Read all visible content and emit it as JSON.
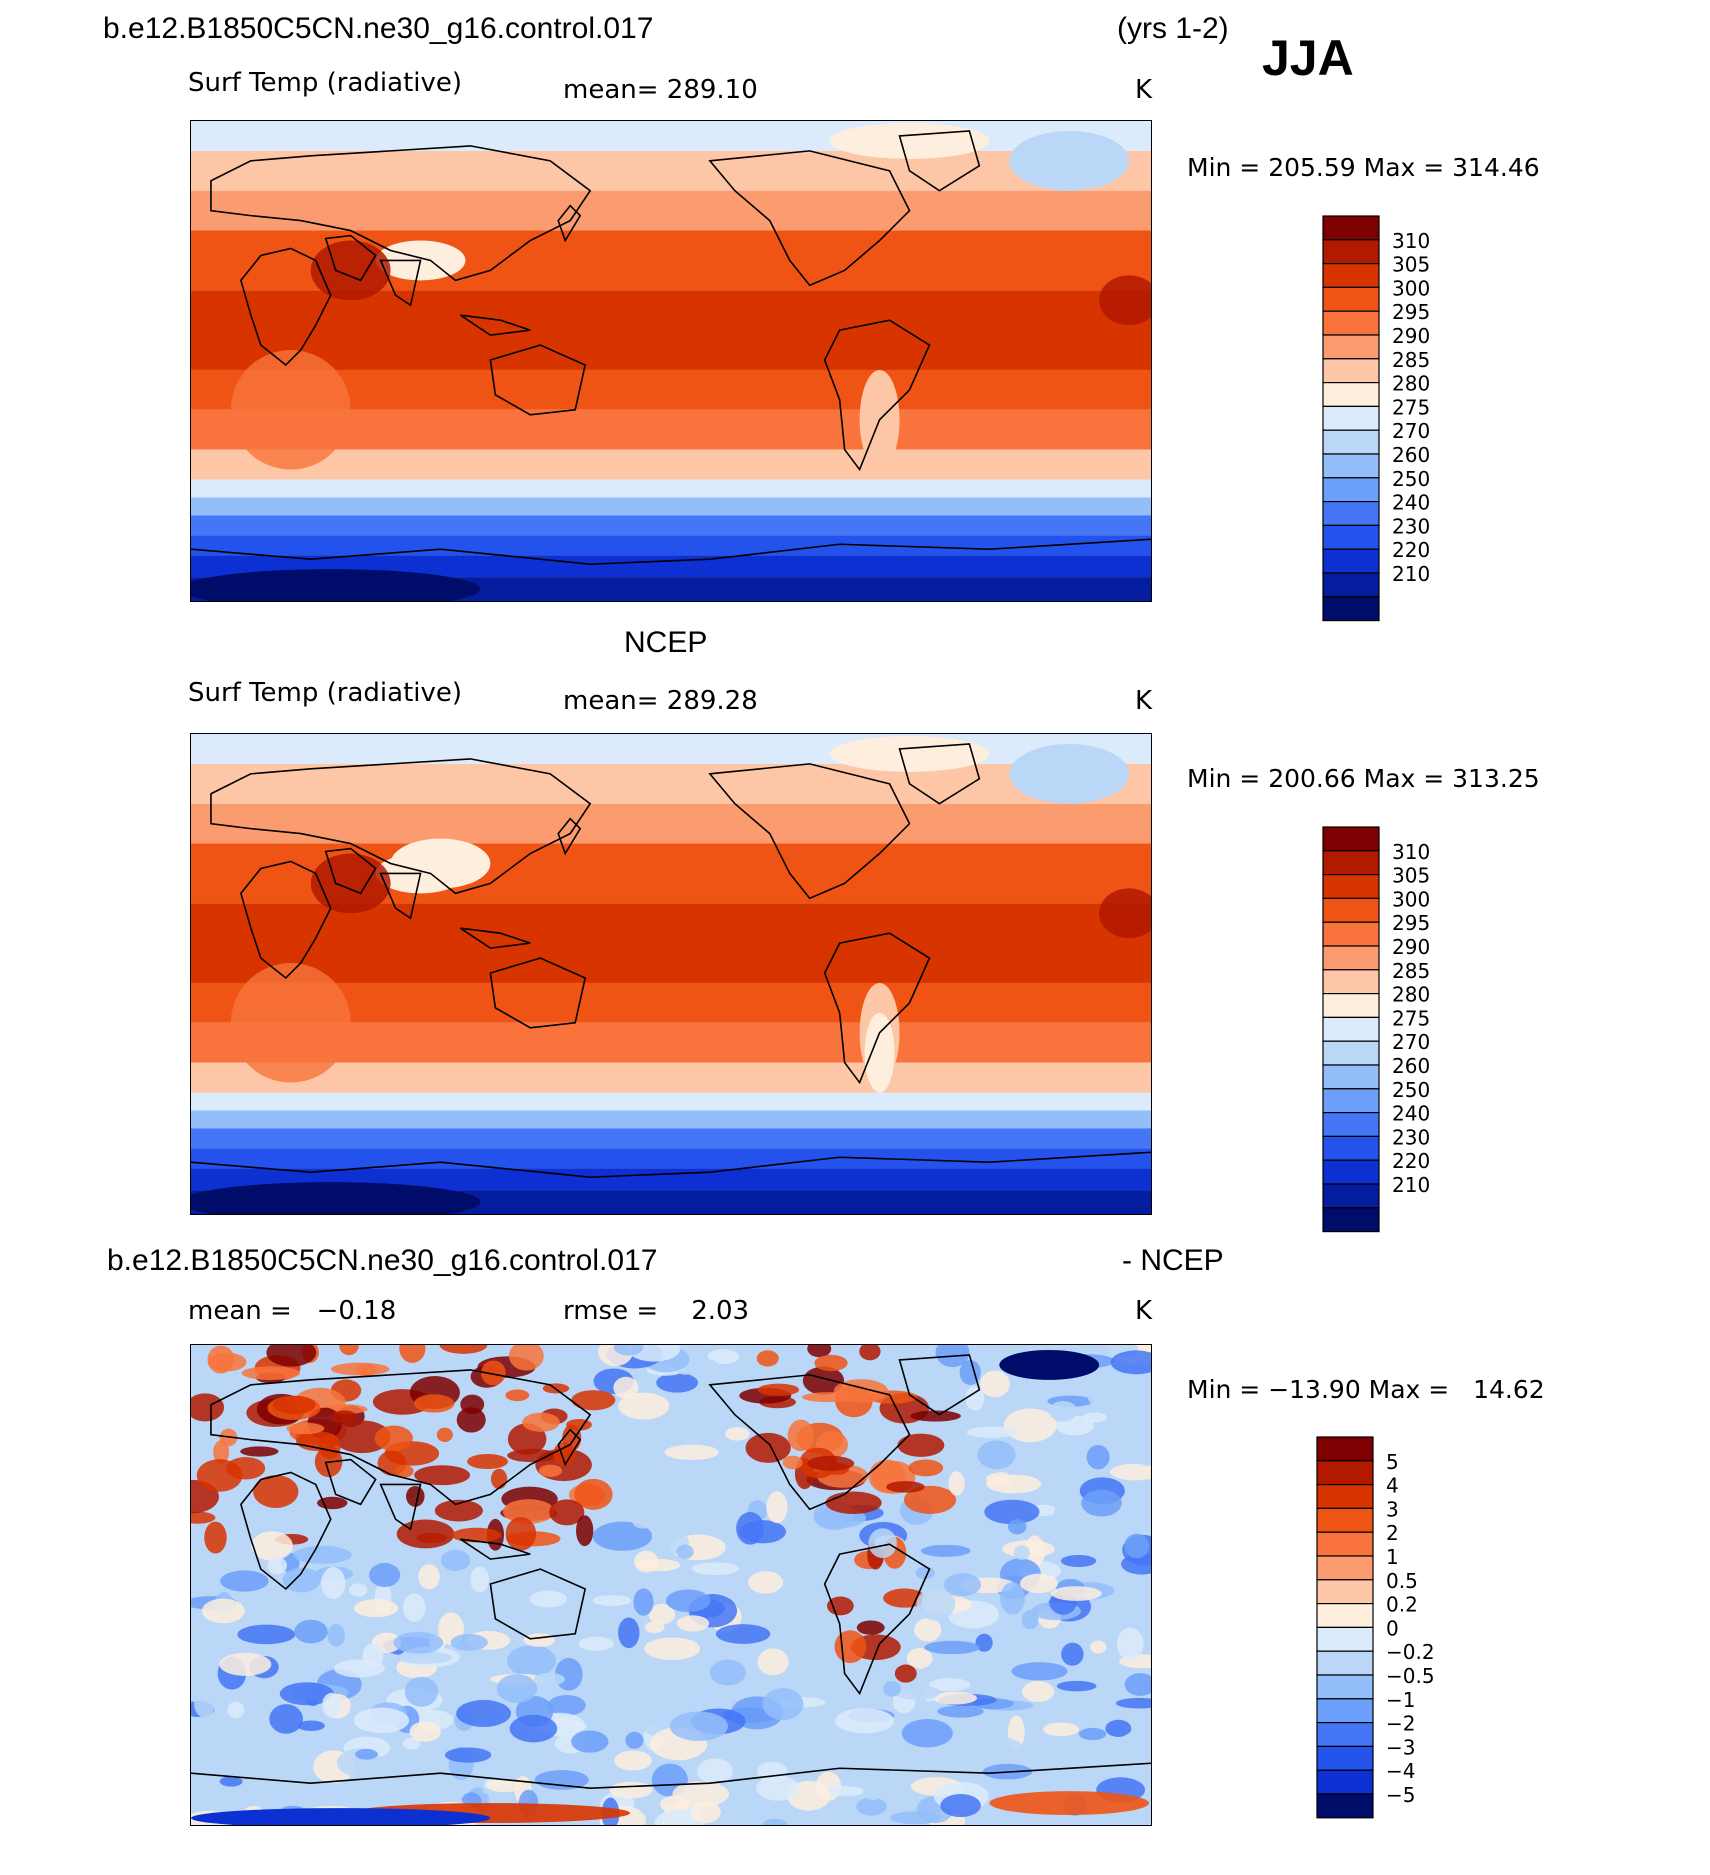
{
  "header": {
    "case_title": "b.e12.B1850C5CN.ne30_g16.control.017",
    "years": "(yrs 1-2)",
    "season": "JJA"
  },
  "panels": [
    {
      "name": "model",
      "title": "",
      "variable": "Surf Temp (radiative)",
      "mean": "mean= 289.10",
      "units": "K",
      "minmax": "Min = 205.59 Max = 314.46"
    },
    {
      "name": "obs",
      "title": "NCEP",
      "variable": "Surf Temp (radiative)",
      "mean": "mean= 289.28",
      "units": "K",
      "minmax": "Min = 200.66 Max = 313.25"
    },
    {
      "name": "diff",
      "title": "b.e12.B1850C5CN.ne30_g16.control.017",
      "title_right": "- NCEP",
      "variable": "mean =   −0.18",
      "mean": "rmse =    2.03",
      "units": "K",
      "minmax": "Min = −13.90 Max =   14.62"
    }
  ],
  "colorbars": {
    "abs_labels": [
      "310",
      "305",
      "300",
      "295",
      "290",
      "285",
      "280",
      "275",
      "270",
      "260",
      "250",
      "240",
      "230",
      "220",
      "210"
    ],
    "abs_colors": [
      "#7e0000",
      "#b21900",
      "#d83400",
      "#ef5414",
      "#f8743c",
      "#fb9b70",
      "#fdc6a6",
      "#fdeede",
      "#dcebfb",
      "#bad7f7",
      "#94befa",
      "#6c9ff9",
      "#4576f5",
      "#2352ec",
      "#0c30d2",
      "#041c9e",
      "#000c6a"
    ],
    "diff_labels": [
      "5",
      "4",
      "3",
      "2",
      "1",
      "0.5",
      "0.2",
      "0",
      "−0.2",
      "−0.5",
      "−1",
      "−2",
      "−3",
      "−4",
      "−5"
    ],
    "diff_colors": [
      "#7e0000",
      "#b21900",
      "#d83400",
      "#ef5414",
      "#f8743c",
      "#fb9b70",
      "#fdc6a6",
      "#fdeede",
      "#dcebfb",
      "#bad7f7",
      "#94befa",
      "#6c9ff9",
      "#4576f5",
      "#2352ec",
      "#0c30d2",
      "#000c6a"
    ]
  }
}
